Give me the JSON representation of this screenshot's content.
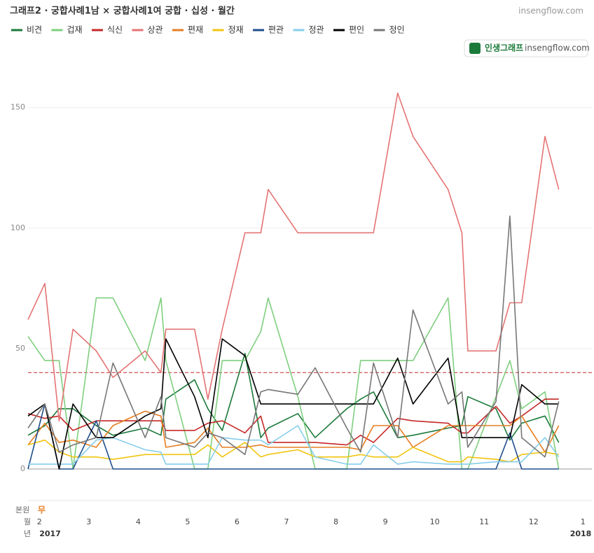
{
  "chart_data": {
    "type": "line",
    "title": "그래프2 · 궁합사례1남 × 궁합사례1여 궁합 · 십성 · 월간",
    "source": "insengflow.com",
    "badge": {
      "brand": "인생그래프",
      "site": "insengflow.com"
    },
    "x": [
      1.77,
      2.11,
      2.4,
      2.68,
      3.15,
      3.49,
      4.14,
      4.46,
      4.56,
      5.14,
      5.41,
      5.7,
      6.16,
      6.48,
      6.63,
      7.23,
      7.58,
      8.22,
      8.5,
      8.76,
      9.25,
      9.56,
      10.27,
      10.55,
      10.67,
      11.24,
      11.52,
      11.76,
      12.23,
      12.51
    ],
    "xlim": [
      1.77,
      13.18
    ],
    "xticks": [
      2,
      3,
      4,
      5,
      6,
      7,
      8,
      9,
      10,
      11,
      12,
      {
        "value": 13,
        "label": "1"
      }
    ],
    "ylim": [
      0,
      165
    ],
    "yticks": [
      0,
      50,
      100,
      150
    ],
    "grid": true,
    "reference_line": 40,
    "series": [
      {
        "name": "비견",
        "color": "#1b7a3a",
        "values": [
          14,
          18,
          25,
          25,
          18,
          14,
          17,
          14,
          29,
          37,
          25,
          16,
          48,
          13,
          17,
          23,
          13,
          25,
          29,
          32,
          13,
          14,
          17,
          18,
          30,
          25,
          12,
          19,
          22,
          11
        ]
      },
      {
        "name": "겁재",
        "color": "#7fcf7f",
        "values": [
          55,
          45,
          45,
          0,
          71,
          71,
          45,
          71,
          45,
          0,
          0,
          45,
          45,
          57,
          71,
          30,
          0,
          0,
          45,
          45,
          45,
          45,
          71,
          0,
          0,
          30,
          45,
          25,
          32,
          0
        ]
      },
      {
        "name": "식신",
        "color": "#c62828",
        "values": [
          23,
          21,
          22,
          16,
          20,
          20,
          20,
          20,
          16,
          16,
          19,
          20,
          15,
          22,
          11,
          11,
          11,
          10,
          14,
          11,
          21,
          20,
          19,
          15,
          15,
          26,
          19,
          22,
          29,
          29
        ]
      },
      {
        "name": "상관",
        "color": "#e57373",
        "values": [
          62,
          77,
          20,
          58,
          49,
          38,
          49,
          40,
          58,
          58,
          29,
          58,
          98,
          98,
          116,
          98,
          98,
          98,
          98,
          98,
          156,
          138,
          116,
          98,
          49,
          49,
          69,
          69,
          138,
          116
        ]
      },
      {
        "name": "편재",
        "color": "#e67e22",
        "values": [
          10,
          19,
          11,
          12,
          9,
          18,
          24,
          22,
          9,
          11,
          17,
          9,
          9,
          10,
          9,
          9,
          9,
          9,
          8,
          18,
          18,
          9,
          18,
          18,
          18,
          18,
          18,
          22,
          7,
          18
        ]
      },
      {
        "name": "정재",
        "color": "#f1c40f",
        "values": [
          10,
          12,
          7,
          5,
          5,
          4,
          6,
          6,
          6,
          6,
          10,
          5,
          11,
          5,
          6,
          8,
          5,
          5,
          6,
          5,
          5,
          9,
          3,
          3,
          5,
          4,
          3,
          6,
          7,
          6
        ]
      },
      {
        "name": "편관",
        "color": "#1f4e8c",
        "values": [
          0,
          27,
          0,
          0,
          20,
          0,
          0,
          0,
          0,
          0,
          0,
          0,
          0,
          0,
          0,
          0,
          0,
          0,
          0,
          0,
          0,
          0,
          0,
          0,
          0,
          0,
          15,
          0,
          0,
          0
        ]
      },
      {
        "name": "정관",
        "color": "#87ceeb",
        "values": [
          2,
          2,
          2,
          2,
          12,
          13,
          8,
          7,
          2,
          2,
          2,
          13,
          12,
          12,
          10,
          18,
          5,
          2,
          2,
          10,
          2,
          3,
          2,
          2,
          2,
          3,
          3,
          3,
          13,
          5
        ]
      },
      {
        "name": "편인",
        "color": "#000000",
        "values": [
          22,
          27,
          0,
          27,
          13,
          13,
          22,
          25,
          54,
          30,
          13,
          54,
          47,
          27,
          27,
          27,
          27,
          27,
          27,
          27,
          46,
          27,
          46,
          13,
          13,
          13,
          13,
          35,
          27,
          27
        ]
      },
      {
        "name": "정인",
        "color": "#777777",
        "values": [
          17,
          27,
          7,
          10,
          13,
          44,
          13,
          30,
          13,
          9,
          15,
          13,
          6,
          32,
          33,
          31,
          42,
          17,
          7,
          44,
          13,
          66,
          27,
          32,
          9,
          28,
          105,
          13,
          5,
          28
        ]
      }
    ],
    "bottom": {
      "bonwon_label": "본원",
      "bonwon_value": "무",
      "month_label": "월",
      "year_label": "년",
      "years": [
        {
          "value": 2,
          "label": "2017"
        },
        {
          "value": 13,
          "label": "2018"
        }
      ]
    }
  }
}
